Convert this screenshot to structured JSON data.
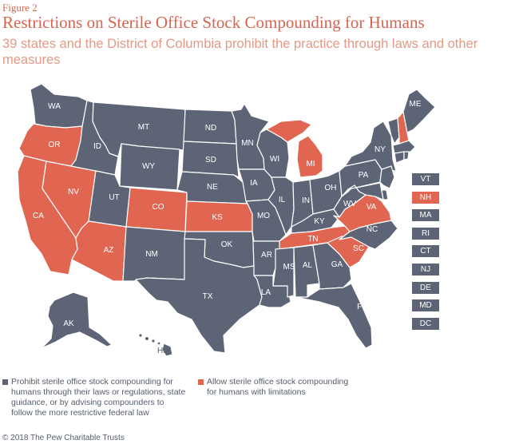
{
  "figure_label": "Figure 2",
  "title": "Restrictions on Sterile Office Stock Compounding for Humans",
  "subtitle": "39 states and the District of Columbia prohibit the practice through laws and other measures",
  "colors": {
    "prohibit": "#5d6476",
    "allow": "#e06652",
    "title": "#d8654f",
    "subtitle": "#e39a86"
  },
  "map_labels": {
    "WA": "WA",
    "OR": "OR",
    "CA": "CA",
    "NV": "NV",
    "ID": "ID",
    "MT": "MT",
    "WY": "WY",
    "UT": "UT",
    "AZ": "AZ",
    "CO": "CO",
    "NM": "NM",
    "ND": "ND",
    "SD": "SD",
    "NE": "NE",
    "KS": "KS",
    "OK": "OK",
    "TX": "TX",
    "MN": "MN",
    "IA": "IA",
    "MO": "MO",
    "AR": "AR",
    "LA": "LA",
    "WI": "WI",
    "IL": "IL",
    "MI": "MI",
    "IN": "IN",
    "OH": "OH",
    "KY": "KY",
    "TN": "TN",
    "MS": "MS",
    "AL": "AL",
    "GA": "GA",
    "FL": "FL",
    "SC": "SC",
    "NC": "NC",
    "VA": "VA",
    "WV": "WV",
    "PA": "PA",
    "NY": "NY",
    "ME": "ME",
    "AK": "AK",
    "HI": "HI"
  },
  "northeast_boxes": [
    {
      "label": "VT",
      "status": "prohibit"
    },
    {
      "label": "NH",
      "status": "allow"
    },
    {
      "label": "MA",
      "status": "prohibit"
    },
    {
      "label": "RI",
      "status": "prohibit"
    },
    {
      "label": "CT",
      "status": "prohibit"
    },
    {
      "label": "NJ",
      "status": "prohibit"
    },
    {
      "label": "DE",
      "status": "prohibit"
    },
    {
      "label": "MD",
      "status": "prohibit"
    },
    {
      "label": "DC",
      "status": "prohibit"
    }
  ],
  "legend": {
    "prohibit": "Prohibit sterile office stock compounding for humans through their laws or regulations, state guidance, or by advising compounders to follow the more restrictive federal law",
    "allow": "Allow sterile office stock compounding for humans with limitations"
  },
  "source": "© 2018 The Pew Charitable Trusts"
}
